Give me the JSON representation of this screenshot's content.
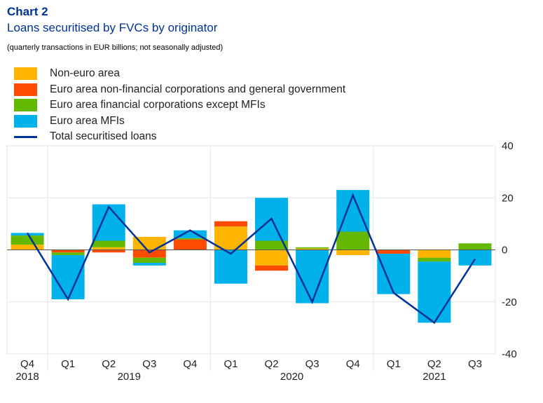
{
  "header": {
    "chart_number": "Chart 2",
    "title": "Loans securitised by FVCs by originator",
    "subtitle": "(quarterly transactions in EUR billions; not seasonally adjusted)"
  },
  "colors": {
    "non_euro": "#FFB400",
    "nfc_gg": "#FF4B00",
    "ofi": "#65B800",
    "mfi": "#00B1EA",
    "total": "#003299"
  },
  "chart_data": {
    "type": "bar",
    "stacked": true,
    "title": "Loans securitised by FVCs by originator",
    "subtitle": "(quarterly transactions in EUR billions; not seasonally adjusted)",
    "categories": [
      "Q4",
      "Q1",
      "Q2",
      "Q3",
      "Q4",
      "Q1",
      "Q2",
      "Q3",
      "Q4",
      "Q1",
      "Q2",
      "Q3"
    ],
    "years": [
      {
        "label": "2018",
        "from": 0,
        "to": 0
      },
      {
        "label": "2019",
        "from": 1,
        "to": 4
      },
      {
        "label": "2020",
        "from": 5,
        "to": 8
      },
      {
        "label": "2021",
        "from": 9,
        "to": 11
      }
    ],
    "series": [
      {
        "name": "Non-euro area",
        "color_key": "non_euro",
        "values": [
          2,
          0,
          1,
          5,
          0,
          9,
          -6,
          0.5,
          -2,
          0,
          -3,
          0
        ]
      },
      {
        "name": "Euro area non-financial corporations and general government",
        "color_key": "nfc_gg",
        "values": [
          0,
          -1,
          -1,
          -3,
          4,
          2,
          -2,
          0,
          0,
          -1.5,
          0,
          0
        ]
      },
      {
        "name": "Euro area financial corporations except MFIs",
        "color_key": "ofi",
        "values": [
          3.5,
          -1,
          2.5,
          -2,
          0.5,
          0,
          3.5,
          0.5,
          7,
          0,
          -1.5,
          2.5
        ]
      },
      {
        "name": "Euro area MFIs",
        "color_key": "mfi",
        "values": [
          1,
          -17,
          14,
          -1,
          3,
          -13,
          16.5,
          -20.5,
          16,
          -15.5,
          -23.5,
          -6
        ]
      }
    ],
    "line": {
      "name": "Total securitised loans",
      "color_key": "total",
      "values": [
        6.5,
        -19,
        16.5,
        -1,
        7.5,
        -1.5,
        12,
        -20,
        21,
        -16.5,
        -28,
        -3.5
      ]
    },
    "ylim": [
      -40,
      40
    ],
    "yticks": [
      40,
      20,
      0,
      -20,
      -40
    ],
    "y_axis_side": "right",
    "grid": true,
    "legend_position": "top-left"
  }
}
